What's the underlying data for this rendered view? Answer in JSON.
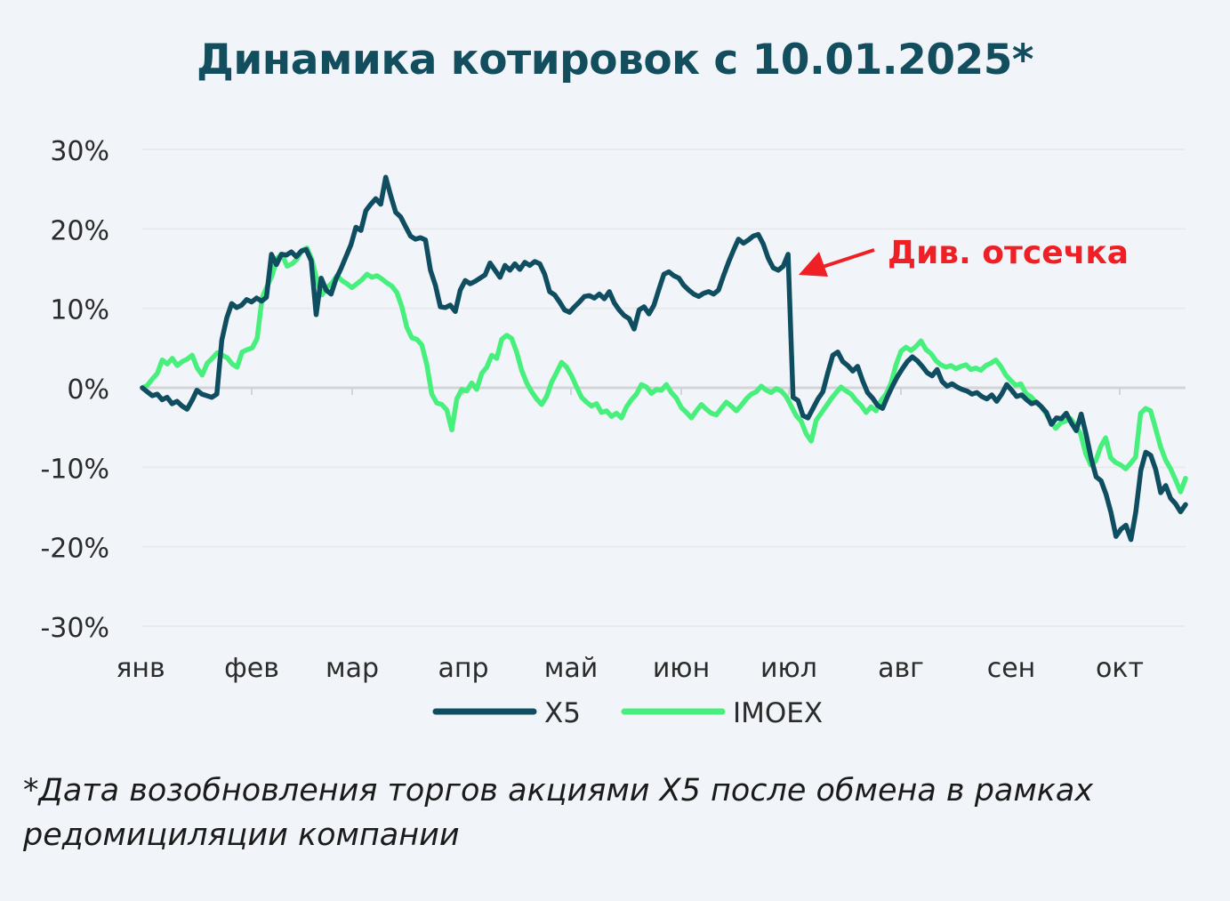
{
  "chart_data": {
    "type": "line",
    "title": "Динамика котировок с 10.01.2025*",
    "ylim": [
      -30,
      30
    ],
    "y_ticks": [
      "30%",
      "20%",
      "10%",
      "0%",
      "-10%",
      "-20%",
      "-30%"
    ],
    "x_tick_labels": [
      "янв",
      "фев",
      "мар",
      "апр",
      "май",
      "июн",
      "июл",
      "авг",
      "сен",
      "окт"
    ],
    "grid": true,
    "legend_position": "bottom",
    "annotation": {
      "text": "Див. отсечка",
      "color": "#ee1f25"
    },
    "series": [
      {
        "name": "X5",
        "color": "#0f4d61",
        "values": [
          0,
          -0.5,
          -1,
          -0.8,
          -1.5,
          -1.2,
          -2,
          -1.7,
          -2.3,
          -2.7,
          -1.6,
          -0.3,
          -0.8,
          -1,
          -1.2,
          -0.8,
          6,
          8.8,
          10.6,
          10.1,
          10.4,
          11.1,
          10.8,
          11.3,
          10.9,
          11.4,
          16.8,
          15.5,
          16.8,
          16.7,
          17.1,
          16.5,
          17.2,
          17.4,
          16,
          9.2,
          13.8,
          12.3,
          11.8,
          13.7,
          15,
          16.5,
          18,
          20.2,
          19.8,
          22.3,
          23.1,
          23.8,
          23.1,
          26.5,
          24.2,
          22.1,
          21.5,
          20.3,
          19.1,
          18.7,
          18.9,
          18.6,
          14.8,
          12.9,
          10.2,
          10.1,
          10.4,
          9.6,
          12.3,
          13.5,
          13.1,
          13.4,
          13.8,
          14.2,
          15.7,
          14.8,
          13.9,
          15.4,
          14.8,
          15.6,
          14.9,
          15.8,
          15.4,
          15.9,
          15.6,
          14.3,
          12.1,
          11.7,
          10.8,
          9.8,
          9.5,
          10.2,
          10.8,
          11.5,
          11.6,
          11.3,
          11.8,
          11.2,
          12.1,
          10.7,
          9.8,
          9.1,
          8.7,
          7.4,
          9.8,
          10.2,
          9.3,
          10.4,
          12.4,
          14.3,
          14.6,
          14.1,
          13.8,
          12.9,
          12.3,
          11.8,
          11.5,
          11.9,
          12.1,
          11.8,
          12.3,
          14.1,
          15.8,
          17.3,
          18.7,
          18.2,
          18.6,
          19.1,
          19.3,
          18.1,
          16.3,
          15.1,
          14.8,
          15.3,
          16.8,
          -1.2,
          -1.6,
          -3.5,
          -3.8,
          -2.6,
          -1.4,
          -0.5,
          1.9,
          4.1,
          4.5,
          3.3,
          2.8,
          2.1,
          2.7,
          0.9,
          -0.6,
          -1.3,
          -2.2,
          -2.6,
          -1.1,
          0.2,
          1.4,
          2.4,
          3.3,
          3.9,
          3.4,
          2.7,
          1.9,
          1.5,
          2.3,
          0.8,
          0.2,
          0.5,
          0.1,
          -0.2,
          -0.4,
          -0.8,
          -0.6,
          -1.1,
          -1.4,
          -0.9,
          -1.7,
          -0.8,
          0.4,
          -0.3,
          -1.1,
          -0.9,
          -1.5,
          -2,
          -1.8,
          -2.4,
          -3.1,
          -4.6,
          -3.8,
          -3.9,
          -3.2,
          -4.4,
          -5.4,
          -3.3,
          -5.9,
          -8.9,
          -11.2,
          -11.7,
          -13.4,
          -15.7,
          -18.7,
          -17.8,
          -17.3,
          -19.1,
          -15.6,
          -10.4,
          -8.1,
          -8.5,
          -10.3,
          -13.2,
          -12.3,
          -13.9,
          -14.6,
          -15.6,
          -14.7
        ]
      },
      {
        "name": "IMOEX",
        "color": "#47f07c",
        "values": [
          0,
          0.3,
          1.1,
          1.8,
          3.5,
          3,
          3.7,
          2.8,
          3.3,
          3.6,
          4.1,
          2.5,
          1.6,
          3.1,
          3.7,
          4.4,
          4.1,
          3.8,
          3,
          2.6,
          4.5,
          4.8,
          5,
          6.2,
          11.3,
          12.8,
          14.1,
          16.3,
          16.8,
          15.3,
          15.6,
          16.2,
          17.3,
          17.6,
          16.1,
          13.5,
          11.7,
          12.6,
          13.2,
          14.1,
          13.5,
          13.1,
          12.6,
          13.1,
          13.6,
          14.3,
          13.9,
          14.1,
          13.7,
          13.2,
          12.8,
          12,
          10.2,
          7.6,
          6.3,
          6.1,
          5.4,
          2.9,
          -0.8,
          -1.9,
          -2.1,
          -2.8,
          -5.3,
          -1.4,
          -0.2,
          -0.4,
          0.6,
          -0.2,
          1.8,
          2.6,
          4.1,
          3.7,
          6.1,
          6.6,
          6.2,
          4.5,
          2.2,
          0.6,
          -0.5,
          -1.4,
          -2.1,
          -1.1,
          0.7,
          1.9,
          3.2,
          2.6,
          1.5,
          0.1,
          -1.2,
          -1.8,
          -2.3,
          -2,
          -3.1,
          -2.9,
          -3.6,
          -3.2,
          -3.8,
          -2.4,
          -1.5,
          -0.8,
          0.4,
          0.1,
          -0.7,
          -0.2,
          -0.3,
          0.4,
          -0.6,
          -1.3,
          -2.5,
          -3.1,
          -3.8,
          -2.9,
          -2.1,
          -2.7,
          -3.2,
          -3.4,
          -2.6,
          -1.8,
          -2.3,
          -2.9,
          -2.2,
          -1.4,
          -0.8,
          -0.5,
          0.2,
          -0.3,
          -0.6,
          -0.1,
          -0.4,
          -1.1,
          -2.3,
          -3.5,
          -4.2,
          -5.8,
          -6.7,
          -4.1,
          -3.2,
          -2.3,
          -1.4,
          -0.6,
          0.1,
          -0.4,
          -0.8,
          -1.6,
          -2.2,
          -3.1,
          -2.4,
          -2.9,
          -1.6,
          -0.8,
          0.6,
          2.9,
          4.6,
          5.1,
          4.7,
          5.2,
          5.9,
          4.8,
          4.3,
          3.4,
          2.9,
          2.6,
          2.8,
          2.4,
          2.7,
          2.9,
          2.3,
          2.5,
          2.2,
          2.8,
          3.1,
          3.5,
          2.7,
          1.6,
          0.9,
          0.3,
          0.5,
          -0.7,
          -1.1,
          -1.8,
          -2.3,
          -3.2,
          -4.3,
          -5.1,
          -4.4,
          -4.2,
          -3.9,
          -4.8,
          -5.8,
          -8.3,
          -9.7,
          -9.2,
          -7.4,
          -6.3,
          -8.8,
          -9.4,
          -9.7,
          -10.2,
          -9.5,
          -8.7,
          -3.2,
          -2.6,
          -2.9,
          -5.1,
          -7.4,
          -9.1,
          -10.2,
          -11.6,
          -13.1,
          -11.4
        ]
      }
    ]
  },
  "footnote": "*Дата возобновления торгов акциями X5 после обмена в рамках редомициляции компании"
}
